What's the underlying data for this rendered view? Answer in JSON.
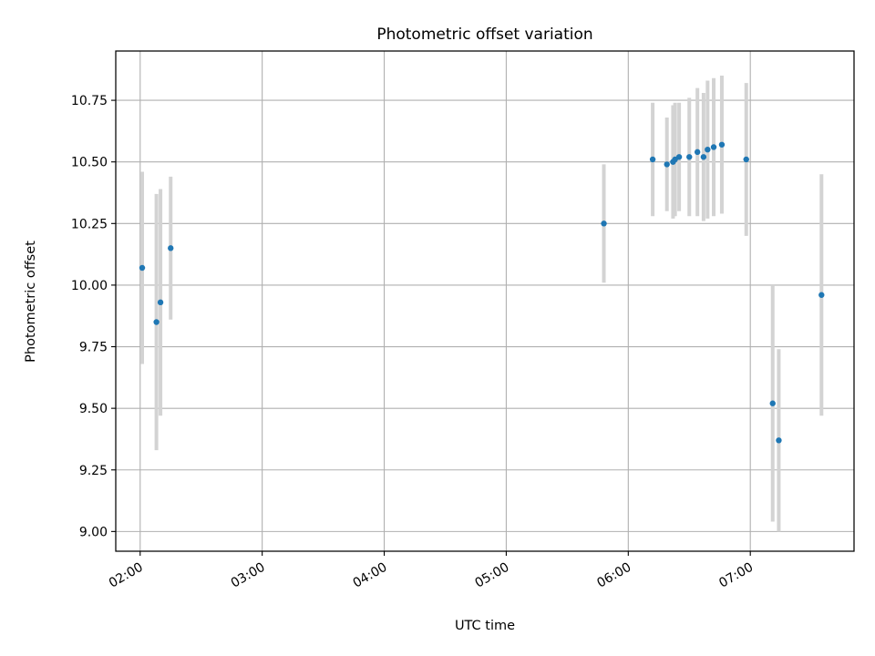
{
  "chart_data": {
    "type": "scatter",
    "title": "Photometric offset variation",
    "xlabel": "UTC time",
    "ylabel": "Photometric offset",
    "x_is_time": true,
    "xlim": [
      "01:48",
      "07:51"
    ],
    "ylim": [
      8.92,
      10.95
    ],
    "grid": true,
    "x_ticks": [
      "02:00",
      "03:00",
      "04:00",
      "05:00",
      "06:00",
      "07:00"
    ],
    "y_ticks": [
      "9.00",
      "9.25",
      "9.50",
      "9.75",
      "10.00",
      "10.25",
      "10.50",
      "10.75"
    ],
    "y_tick_values": [
      9.0,
      9.25,
      9.5,
      9.75,
      10.0,
      10.25,
      10.5,
      10.75
    ],
    "colors": {
      "point": "#1f77b4",
      "error_bar": "#d3d3d3",
      "grid": "#b0b0b0"
    },
    "points": [
      {
        "x": "02:01",
        "y": 10.07,
        "err": 0.39
      },
      {
        "x": "02:08",
        "y": 9.85,
        "err": 0.52
      },
      {
        "x": "02:10",
        "y": 9.93,
        "err": 0.46
      },
      {
        "x": "02:15",
        "y": 10.15,
        "err": 0.29
      },
      {
        "x": "05:48",
        "y": 10.25,
        "err": 0.24
      },
      {
        "x": "06:12",
        "y": 10.51,
        "err": 0.23
      },
      {
        "x": "06:19",
        "y": 10.49,
        "err": 0.19
      },
      {
        "x": "06:22",
        "y": 10.5,
        "err": 0.23
      },
      {
        "x": "06:23",
        "y": 10.51,
        "err": 0.23
      },
      {
        "x": "06:25",
        "y": 10.52,
        "err": 0.22
      },
      {
        "x": "06:30",
        "y": 10.52,
        "err": 0.24
      },
      {
        "x": "06:34",
        "y": 10.54,
        "err": 0.26
      },
      {
        "x": "06:37",
        "y": 10.52,
        "err": 0.26
      },
      {
        "x": "06:39",
        "y": 10.55,
        "err": 0.28
      },
      {
        "x": "06:42",
        "y": 10.56,
        "err": 0.28
      },
      {
        "x": "06:46",
        "y": 10.57,
        "err": 0.28
      },
      {
        "x": "06:58",
        "y": 10.51,
        "err": 0.31
      },
      {
        "x": "07:11",
        "y": 9.52,
        "err": 0.48
      },
      {
        "x": "07:14",
        "y": 9.37,
        "err": 0.37
      },
      {
        "x": "07:35",
        "y": 9.96,
        "err": 0.49
      }
    ]
  }
}
